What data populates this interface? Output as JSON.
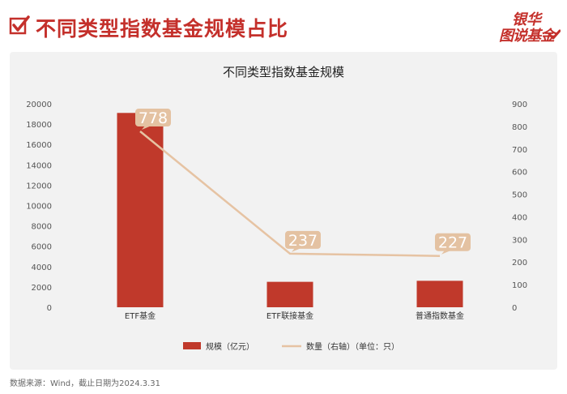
{
  "header": {
    "title": "不同类型指数基金规模占比",
    "logo_top": "银华",
    "logo_bottom": "图说基金"
  },
  "colors": {
    "accent": "#c4302b",
    "bar": "#c0392b",
    "line": "#e6c3a3",
    "label_bg": "#e4c2a2"
  },
  "chart_data": {
    "type": "bar",
    "title": "不同类型指数基金规模",
    "categories": [
      "ETF基金",
      "ETF联接基金",
      "普通指数基金"
    ],
    "series": [
      {
        "name": "规模（亿元）",
        "type": "bar",
        "axis": "left",
        "values": [
          19100,
          2500,
          2600
        ]
      },
      {
        "name": "数量（右轴）（单位：只）",
        "type": "line",
        "axis": "right",
        "values": [
          778,
          237,
          227
        ]
      }
    ],
    "left_axis": {
      "ylim": [
        0,
        20000
      ],
      "ticks": [
        "0",
        "2000",
        "4000",
        "6000",
        "8000",
        "10000",
        "12000",
        "14000",
        "16000",
        "18000",
        "20000"
      ]
    },
    "right_axis": {
      "ylim": [
        0,
        900
      ],
      "ticks": [
        "0",
        "100",
        "200",
        "300",
        "400",
        "500",
        "600",
        "700",
        "800",
        "900"
      ]
    },
    "legend": {
      "position": "bottom",
      "bar_label": "规模（亿元）",
      "line_label": "数量（右轴）（单位：只）"
    },
    "data_labels": [
      "778",
      "237",
      "227"
    ],
    "grid": false
  },
  "footer": {
    "source": "数据来源：Wind，截止日期为2024.3.31"
  }
}
